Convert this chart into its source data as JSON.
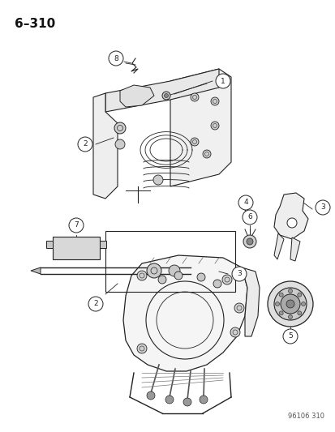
{
  "title_label": "6–310",
  "watermark": "96106 310",
  "bg_color": "#ffffff",
  "fig_width": 4.14,
  "fig_height": 5.33,
  "dpi": 100
}
